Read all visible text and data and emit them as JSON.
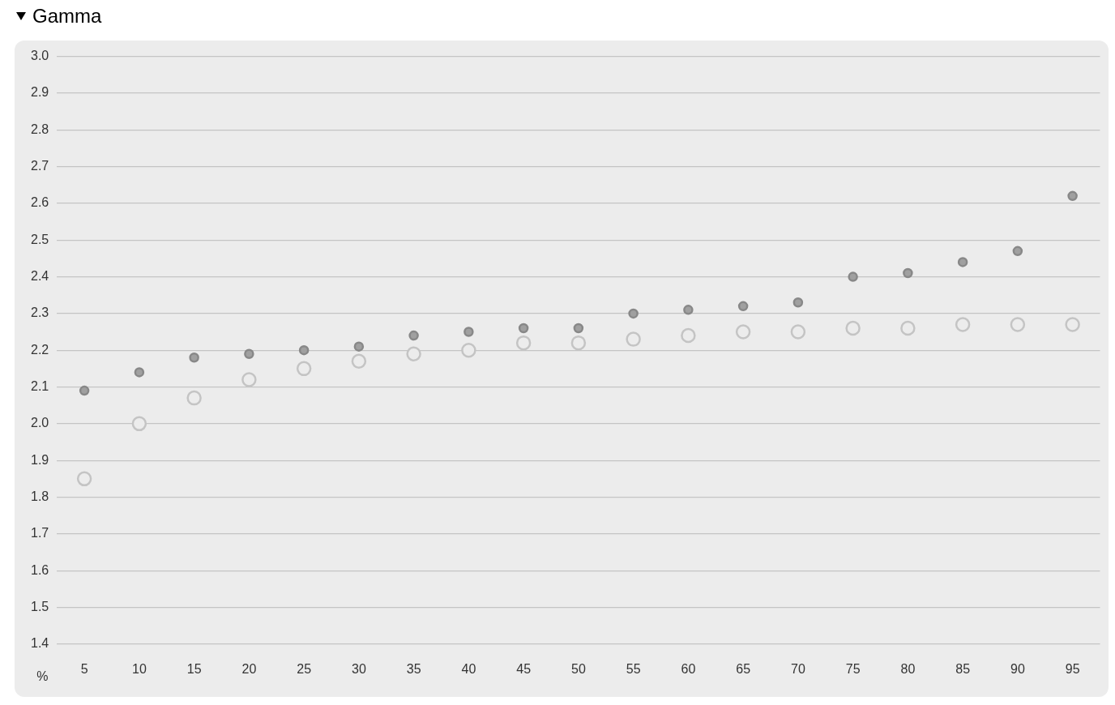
{
  "chart_data": {
    "type": "scatter",
    "title": "Gamma",
    "xlabel": "%",
    "categories": [
      "5",
      "10",
      "15",
      "20",
      "25",
      "30",
      "35",
      "40",
      "45",
      "50",
      "55",
      "60",
      "65",
      "70",
      "75",
      "80",
      "85",
      "90",
      "95"
    ],
    "series": [
      {
        "color": "#a0a0a0",
        "values": [
          2.09,
          2.14,
          2.18,
          2.19,
          2.2,
          2.21,
          2.24,
          2.25,
          2.26,
          2.26,
          2.3,
          2.31,
          2.32,
          2.33,
          2.4,
          2.41,
          2.44,
          2.47,
          2.62
        ]
      },
      {
        "color": "#c4c4c4",
        "values": [
          1.85,
          2.0,
          2.07,
          2.12,
          2.15,
          2.17,
          2.19,
          2.2,
          2.22,
          2.22,
          2.23,
          2.24,
          2.25,
          2.25,
          2.26,
          2.26,
          2.27,
          2.27,
          2.27
        ]
      }
    ],
    "ylim": [
      1.4,
      3.0
    ],
    "yticks": [
      {
        "value": 1.4,
        "label": "1.4"
      },
      {
        "value": 1.5,
        "label": "1.5"
      },
      {
        "value": 1.6,
        "label": "1.6"
      },
      {
        "value": 1.7,
        "label": "1.7"
      },
      {
        "value": 1.8,
        "label": "1.8"
      },
      {
        "value": 1.9,
        "label": "1.9"
      },
      {
        "value": 2,
        "label": "2.0"
      },
      {
        "value": 2.1,
        "label": "2.1"
      },
      {
        "value": 2.2,
        "label": "2.2"
      },
      {
        "value": 2.3,
        "label": "2.3"
      },
      {
        "value": 2.4,
        "label": "2.4"
      },
      {
        "value": 2.5,
        "label": "2.5"
      },
      {
        "value": 2.6,
        "label": "2.6"
      },
      {
        "value": 2.7,
        "label": "2.7"
      },
      {
        "value": 2.8,
        "label": "2.8"
      },
      {
        "value": 2.9,
        "label": "2.9"
      },
      {
        "value": 3,
        "label": "3.0"
      }
    ],
    "grid": "y",
    "legend": false,
    "marker": "circle"
  }
}
